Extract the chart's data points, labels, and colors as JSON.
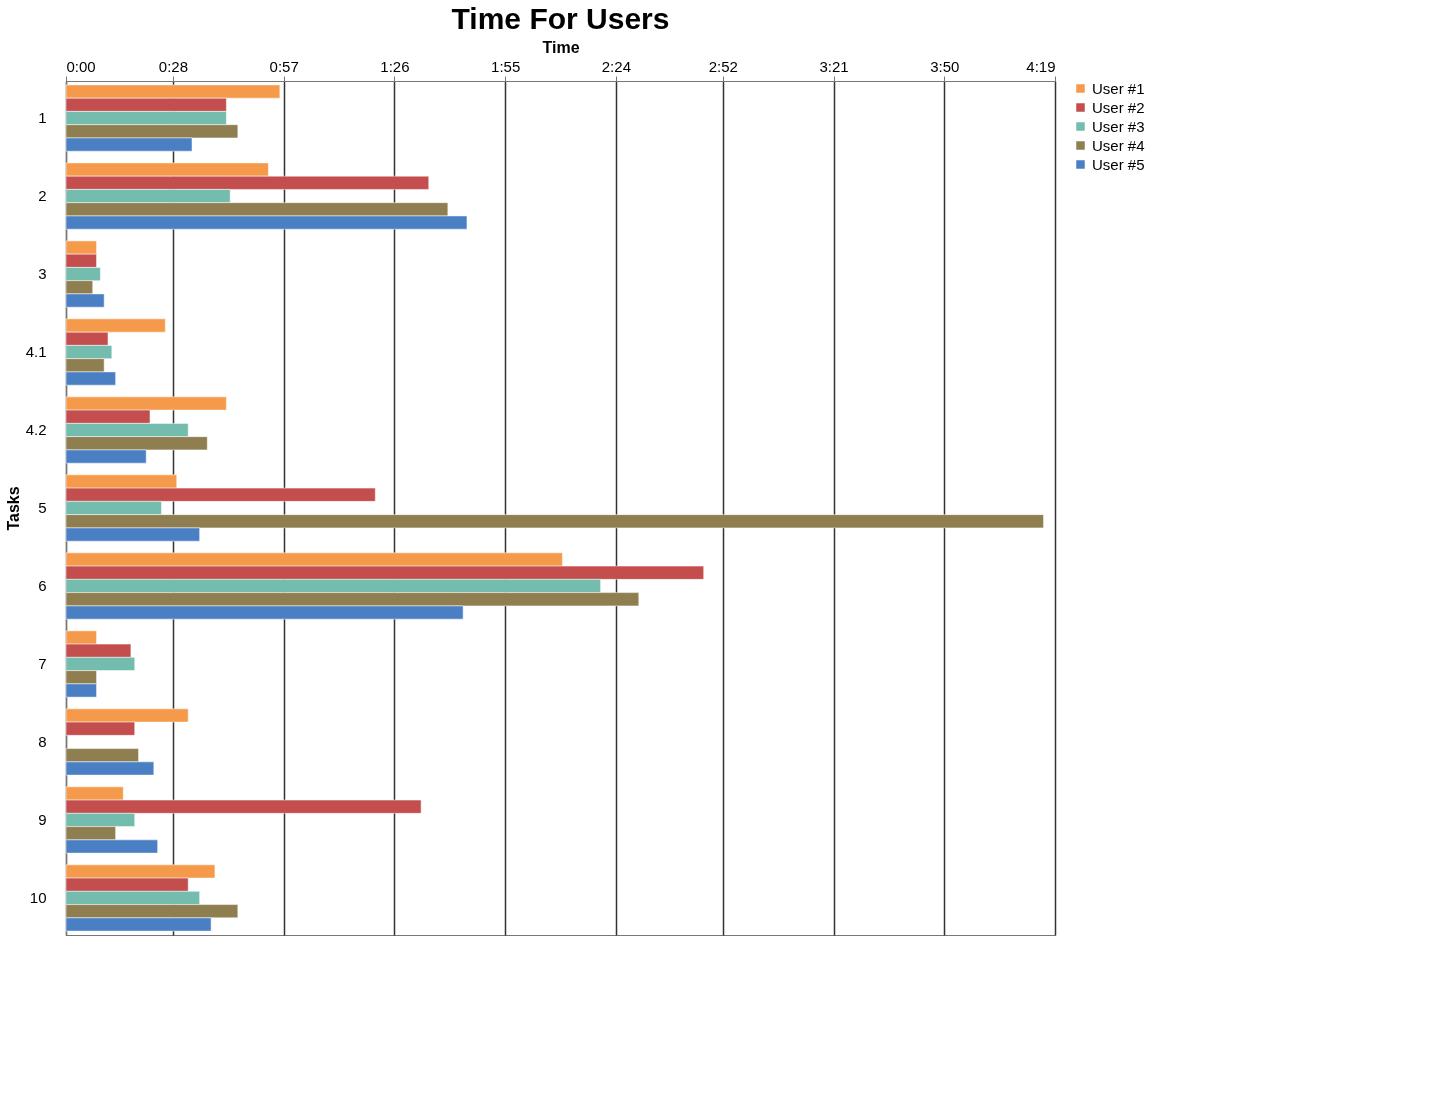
{
  "chart_data": {
    "type": "bar",
    "orientation": "horizontal",
    "title": "Time For Users",
    "xlabel": "Time",
    "ylabel": "Tasks",
    "categories": [
      "1",
      "2",
      "3",
      "4.1",
      "4.2",
      "5",
      "6",
      "7",
      "8",
      "9",
      "10"
    ],
    "series": [
      {
        "name": "User #1",
        "color": "#f59a4a",
        "values": [
          56,
          53,
          8,
          26,
          42,
          29,
          130,
          8,
          32,
          15,
          39
        ]
      },
      {
        "name": "User #2",
        "color": "#c44d4d",
        "values": [
          42,
          95,
          8,
          11,
          22,
          81,
          167,
          17,
          18,
          93,
          32
        ]
      },
      {
        "name": "User #3",
        "color": "#74bcad",
        "values": [
          42,
          43,
          9,
          12,
          32,
          25,
          140,
          18,
          null,
          18,
          35
        ]
      },
      {
        "name": "User #4",
        "color": "#8f7f50",
        "values": [
          45,
          100,
          7,
          10,
          37,
          256,
          150,
          8,
          19,
          13,
          45
        ]
      },
      {
        "name": "User #5",
        "color": "#4a7fc4",
        "values": [
          33,
          105,
          10,
          13,
          21,
          35,
          104,
          8,
          23,
          24,
          38
        ]
      }
    ],
    "xlim": [
      0,
      259
    ],
    "xticks": [
      {
        "value": 0,
        "label": "0:00"
      },
      {
        "value": 28,
        "label": "0:28"
      },
      {
        "value": 57,
        "label": "0:57"
      },
      {
        "value": 86,
        "label": "1:26"
      },
      {
        "value": 115,
        "label": "1:55"
      },
      {
        "value": 144,
        "label": "2:24"
      },
      {
        "value": 172,
        "label": "2:52"
      },
      {
        "value": 201,
        "label": "3:21"
      },
      {
        "value": 230,
        "label": "3:50"
      },
      {
        "value": 259,
        "label": "4:19"
      }
    ],
    "grid": "x",
    "legend": "right"
  }
}
